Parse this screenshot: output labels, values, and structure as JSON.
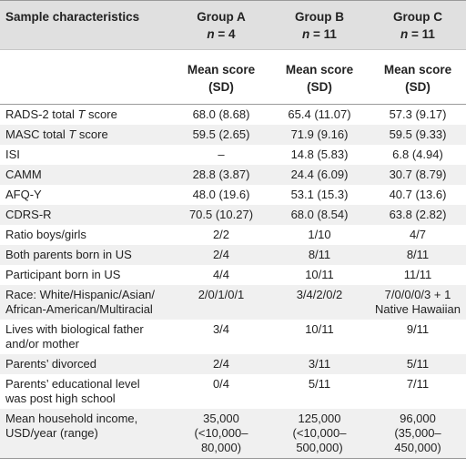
{
  "header": {
    "label": "Sample characteristics",
    "groups": [
      {
        "name": "Group A",
        "n_prefix": "n",
        "n_eq": " = 4"
      },
      {
        "name": "Group B",
        "n_prefix": "n",
        "n_eq": " = 11"
      },
      {
        "name": "Group C",
        "n_prefix": "n",
        "n_eq": " = 11"
      }
    ],
    "subheader_line1": "Mean score",
    "subheader_line2": "(SD)"
  },
  "rows": [
    {
      "label": "RADS-2 total ",
      "label_ital": "T",
      "label_tail": " score",
      "a": "68.0 (8.68)",
      "b": "65.4 (11.07)",
      "c": "57.3 (9.17)"
    },
    {
      "label": "MASC total ",
      "label_ital": "T",
      "label_tail": " score",
      "a": "59.5 (2.65)",
      "b": "71.9 (9.16)",
      "c": "59.5 (9.33)"
    },
    {
      "label": "ISI",
      "a": "–",
      "b": "14.8 (5.83)",
      "c": "6.8 (4.94)"
    },
    {
      "label": "CAMM",
      "a": "28.8 (3.87)",
      "b": "24.4 (6.09)",
      "c": "30.7 (8.79)"
    },
    {
      "label": "AFQ-Y",
      "a": "48.0 (19.6)",
      "b": "53.1 (15.3)",
      "c": "40.7 (13.6)"
    },
    {
      "label": "CDRS-R",
      "a": "70.5 (10.27)",
      "b": "68.0 (8.54)",
      "c": "63.8 (2.82)"
    },
    {
      "label": "Ratio boys/girls",
      "a": "2/2",
      "b": "1/10",
      "c": "4/7"
    },
    {
      "label": "Both parents born in US",
      "a": "2/4",
      "b": "8/11",
      "c": "8/11"
    },
    {
      "label": "Participant born in US",
      "a": "4/4",
      "b": "10/11",
      "c": "11/11"
    },
    {
      "label": "Race: White/Hispanic/Asian/",
      "label2": "African-American/Multiracial",
      "a": "2/0/1/0/1",
      "b": "3/4/2/0/2",
      "c": "7/0/0/0/3 + 1",
      "c2": "Native Hawaiian"
    },
    {
      "label": "Lives with biological father",
      "label2": "and/or mother",
      "a": "3/4",
      "b": "10/11",
      "c": "9/11"
    },
    {
      "label": "Parents’ divorced",
      "a": "2/4",
      "b": "3/11",
      "c": "5/11"
    },
    {
      "label": "Parents’ educational level",
      "label2": "was post high school",
      "a": "0/4",
      "b": "5/11",
      "c": "7/11"
    },
    {
      "label": "Mean household income,",
      "label2": "USD/year (range)",
      "a": "35,000",
      "a2": "(<10,000–",
      "a3": "80,000)",
      "b": "125,000",
      "b2": "(<10,000–",
      "b3": "500,000)",
      "c": "96,000",
      "c2": "(35,000–",
      "c3": "450,000)"
    }
  ]
}
